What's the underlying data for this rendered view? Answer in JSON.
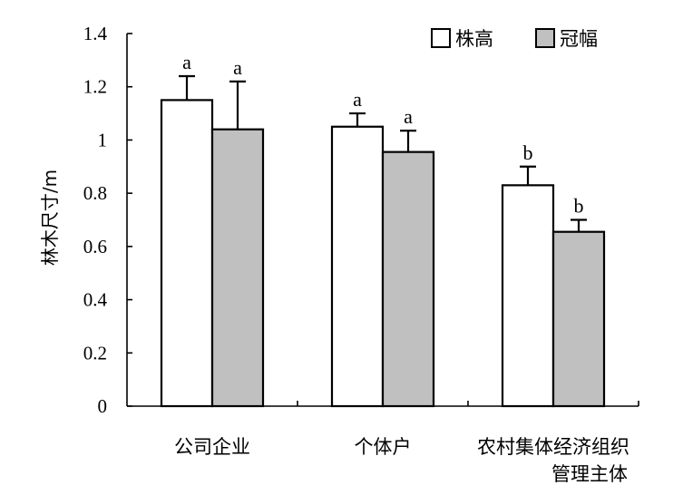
{
  "chart_data": {
    "type": "bar",
    "categories": [
      "公司企业",
      "个体户",
      "农村集体经济组织\n管理主体"
    ],
    "series": [
      {
        "name": "株高",
        "values": [
          1.15,
          1.05,
          0.83
        ],
        "errors": [
          0.09,
          0.05,
          0.07
        ],
        "letters": [
          "a",
          "a",
          "b"
        ],
        "color": "#ffffff"
      },
      {
        "name": "冠幅",
        "values": [
          1.04,
          0.955,
          0.655
        ],
        "errors": [
          0.18,
          0.08,
          0.045
        ],
        "letters": [
          "a",
          "a",
          "b"
        ],
        "color": "#c0c0c0"
      }
    ],
    "ylabel": "林木尺寸/m",
    "xlabel": "",
    "ylim": [
      0,
      1.4
    ],
    "yticks": [
      "0",
      "0.2",
      "0.4",
      "0.6",
      "0.8",
      "1",
      "1.2",
      "1.4"
    ],
    "legend_position": "top-right",
    "grid": false
  }
}
